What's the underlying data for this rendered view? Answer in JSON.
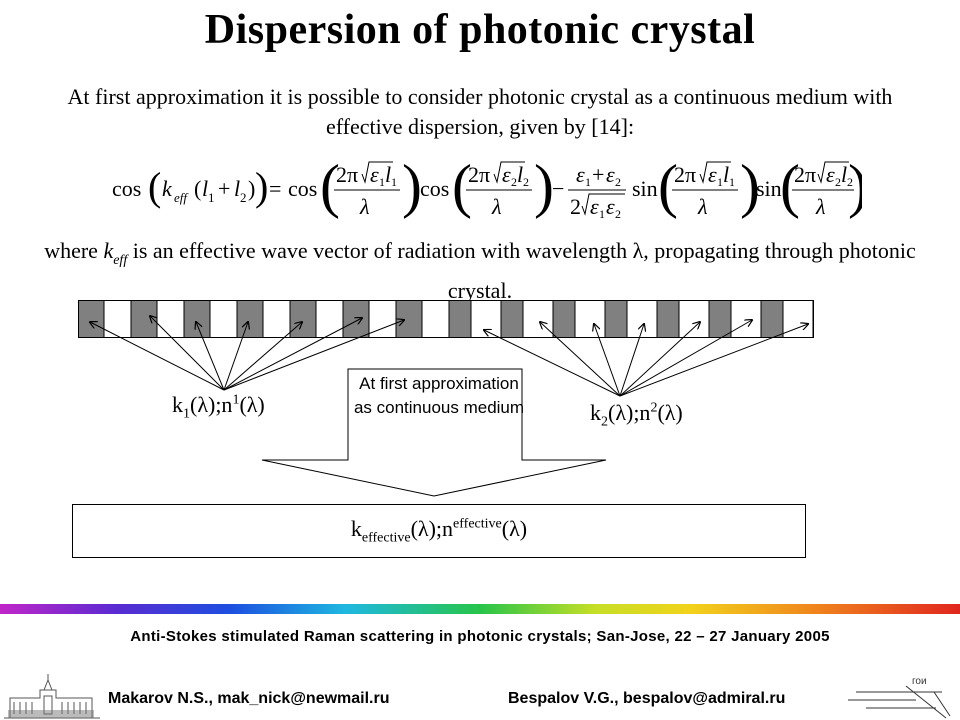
{
  "title": "Dispersion of photonic crystal",
  "intro": "At first approximation it is possible to consider photonic crystal as a continuous medium with effective dispersion, given by [14]:",
  "where": {
    "pre": "where ",
    "k": "k",
    "sub": "eff",
    "post": " is an effective wave vector of radiation with wavelength λ, propagating through photonic crystal."
  },
  "labels": {
    "k1": {
      "k": "k",
      "ksub": "1",
      "mid": "(λ);n",
      "nsup": "1",
      "end": "(λ)"
    },
    "k2": {
      "k": "k",
      "ksub": "2",
      "mid": "(λ);n",
      "nsup": "2",
      "end": "(λ)"
    },
    "arrow_text": "At first approximation as continuous medium",
    "effective": {
      "k": "k",
      "ksub": "effective",
      "mid": "(λ);n",
      "nsup": "effective",
      "end": "(λ)"
    }
  },
  "formula": {
    "cos": "cos",
    "k": "k",
    "eff": "eff",
    "l1l2": "(l",
    "s1": "1",
    "plus": " + l",
    "s2": "2",
    "close": "))",
    "eq": "="
  },
  "footer": {
    "conference": "Anti-Stokes stimulated Raman scattering in photonic crystals; San-Jose, 22 – 27 January  2005",
    "author1": "Makarov N.S., mak_nick@newmail.ru",
    "author2": "Bespalov V.G., bespalov@admiral.ru",
    "logo_text": "гои"
  },
  "colors": {
    "dark_layer": "#808080",
    "light_layer": "#ffffff"
  }
}
